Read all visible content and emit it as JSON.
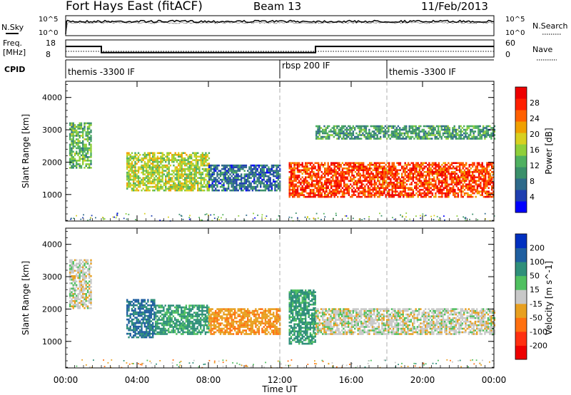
{
  "header": {
    "station": "Fort Hays East (fitACF)",
    "beam": "Beam 13",
    "date": "11/Feb/2013"
  },
  "noise_panel": {
    "left_label": "N.Sky",
    "right_label": "N.Search",
    "left_ticks": [
      "10^5",
      "10^0"
    ],
    "right_ticks": [
      "10^5",
      "10^0"
    ]
  },
  "freq_panel": {
    "left_label_1": "Freq.",
    "left_label_2": "[MHz]",
    "right_label": "Nave",
    "left_ticks": [
      "18",
      "8"
    ],
    "right_ticks": [
      "60",
      "0"
    ],
    "freq_mhz": [
      {
        "start_h": 0.0,
        "end_h": 2.0,
        "value": 14.2
      },
      {
        "start_h": 2.0,
        "end_h": 14.0,
        "value": 10.6
      },
      {
        "start_h": 14.0,
        "end_h": 24.0,
        "value": 14.2
      }
    ]
  },
  "cpid": {
    "label": "CPID",
    "segments": [
      {
        "start_h": 0.0,
        "name": "themis -3300 IF"
      },
      {
        "start_h": 12.0,
        "name": "rbsp 200 IF"
      },
      {
        "start_h": 18.0,
        "name": "themis -3300 IF"
      }
    ]
  },
  "chart_data": [
    {
      "type": "heatmap",
      "panel": "power",
      "ylabel": "Slant Range [km]",
      "yticks": [
        "1000",
        "2000",
        "3000",
        "4000"
      ],
      "ylim": [
        180,
        4500
      ],
      "colorbar_label": "Power [dB]",
      "colorbar_ticks": [
        "4",
        "8",
        "12",
        "16",
        "20",
        "24",
        "28"
      ],
      "colorbar_colors": [
        "#0000ff",
        "#1f3fb0",
        "#2e6a8a",
        "#3a8f6a",
        "#4fb060",
        "#8fcf3a",
        "#d8d020",
        "#f0a000",
        "#ff6000",
        "#ff2000",
        "#ee0000"
      ],
      "features": [
        {
          "x_h": [
            0.2,
            1.4
          ],
          "range_km": [
            1800,
            3200
          ],
          "level_db": 12
        },
        {
          "x_h": [
            3.4,
            8.0
          ],
          "range_km": [
            1100,
            2300
          ],
          "level_db": 16
        },
        {
          "x_h": [
            8.0,
            12.0
          ],
          "range_km": [
            1100,
            1900
          ],
          "level_db": 6
        },
        {
          "x_h": [
            12.5,
            24.0
          ],
          "range_km": [
            900,
            2000
          ],
          "level_db": 26
        },
        {
          "x_h": [
            14.0,
            24.0
          ],
          "range_km": [
            2700,
            3100
          ],
          "level_db": 10
        }
      ]
    },
    {
      "type": "heatmap",
      "panel": "velocity",
      "ylabel": "Slant Range [km]",
      "yticks": [
        "1000",
        "2000",
        "3000",
        "4000"
      ],
      "ylim": [
        180,
        4500
      ],
      "colorbar_label": "Velocity [m s^-1]",
      "colorbar_ticks": [
        "200",
        "100",
        "50",
        "15",
        "-15",
        "-50",
        "-100",
        "-200"
      ],
      "colorbar_colors": [
        "#0030c0",
        "#1f5fa0",
        "#2f8f7a",
        "#50c060",
        "#c8c8c8",
        "#e8a020",
        "#ff7010",
        "#ff3010",
        "#ee0000"
      ],
      "features": [
        {
          "x_h": [
            0.2,
            1.4
          ],
          "range_km": [
            2000,
            3500
          ],
          "velocity": 0
        },
        {
          "x_h": [
            3.4,
            5.0
          ],
          "range_km": [
            1100,
            2300
          ],
          "velocity": 80
        },
        {
          "x_h": [
            5.0,
            8.0
          ],
          "range_km": [
            1200,
            2100
          ],
          "velocity": 40
        },
        {
          "x_h": [
            8.0,
            12.0
          ],
          "range_km": [
            1200,
            2000
          ],
          "velocity": -40
        },
        {
          "x_h": [
            12.5,
            14.0
          ],
          "range_km": [
            900,
            2600
          ],
          "velocity": 40
        },
        {
          "x_h": [
            14.0,
            24.0
          ],
          "range_km": [
            1200,
            2000
          ],
          "velocity": 0
        }
      ]
    }
  ],
  "xaxis": {
    "label": "Time UT",
    "ticks": [
      "00:00",
      "04:00",
      "08:00",
      "12:00",
      "16:00",
      "20:00",
      "00:00"
    ]
  }
}
